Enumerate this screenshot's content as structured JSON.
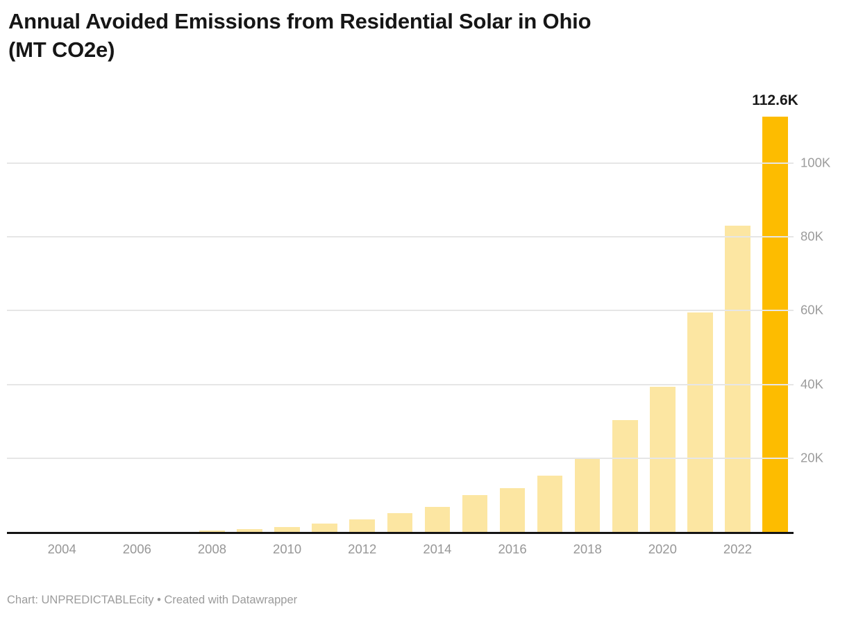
{
  "header": {
    "title_lines": [
      "Annual Avoided Emissions from Residential Solar in Ohio",
      "(MT CO2e)"
    ]
  },
  "annotation": {
    "text": "112.6K"
  },
  "footer": {
    "attribution": "Chart: UNPREDICTABLEcity",
    "separator": " • ",
    "credit": "Created with Datawrapper"
  },
  "colors": {
    "background": "#FFFFFF",
    "bar": "#FCE6A2",
    "bar_highlight": "#FDBC00",
    "gridline": "#E6E6E6",
    "axis_line": "#141414",
    "x_tick_label": "#979797",
    "y_tick_label": "#9C9C9C",
    "title_text": "#161616",
    "annotation_text": "#1A1A1A",
    "footer_text": "#9B9B9B"
  },
  "chart_data": {
    "type": "bar",
    "title": "Annual Avoided Emissions from Residential Solar in Ohio (MT CO2e)",
    "unit": "MT CO2e",
    "xlabel": "",
    "ylabel": "",
    "grid": "horizontal",
    "legend": "none",
    "ylim": [
      0,
      113000
    ],
    "categories": [
      2003,
      2004,
      2005,
      2006,
      2007,
      2008,
      2009,
      2010,
      2011,
      2012,
      2013,
      2014,
      2015,
      2016,
      2017,
      2018,
      2019,
      2020,
      2021,
      2022,
      2023
    ],
    "values": [
      0,
      0,
      0,
      0,
      0,
      400,
      800,
      1300,
      2200,
      3400,
      5000,
      6700,
      9900,
      11900,
      15200,
      19800,
      30400,
      39400,
      59400,
      83100,
      112600
    ],
    "highlight_category": 2023,
    "highlight_value_label": "112.6K",
    "y_ticks": [
      {
        "value": 20000,
        "label": "20K"
      },
      {
        "value": 40000,
        "label": "40K"
      },
      {
        "value": 60000,
        "label": "60K"
      },
      {
        "value": 80000,
        "label": "80K"
      },
      {
        "value": 100000,
        "label": "100K"
      }
    ],
    "x_ticks": [
      2004,
      2006,
      2008,
      2010,
      2012,
      2014,
      2016,
      2018,
      2020,
      2022
    ]
  }
}
